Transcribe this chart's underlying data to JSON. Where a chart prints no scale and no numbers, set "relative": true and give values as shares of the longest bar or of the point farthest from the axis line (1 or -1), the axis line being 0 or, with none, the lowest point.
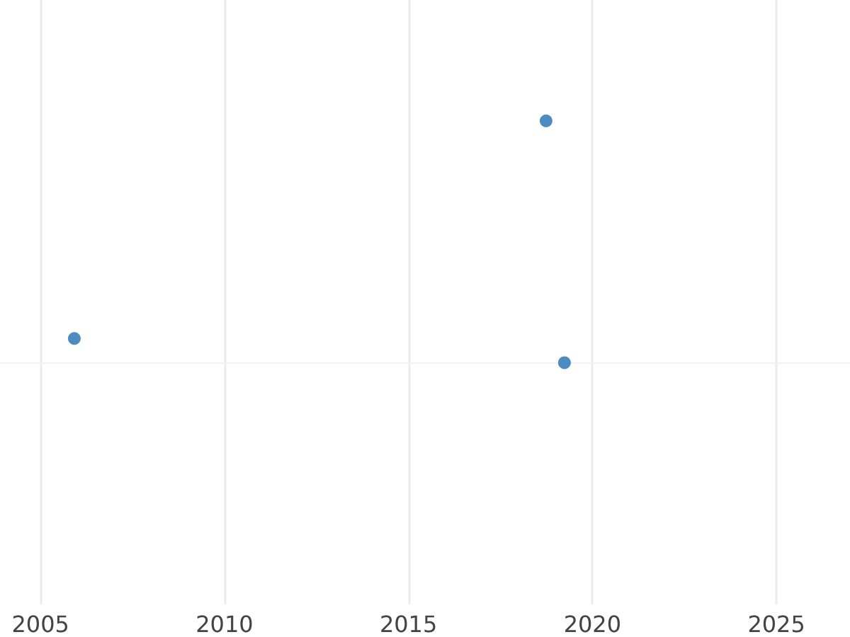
{
  "chart_data": {
    "type": "scatter",
    "relative": true,
    "x": [
      2005.92,
      2018.74,
      2019.24
    ],
    "series": [
      {
        "color": "#1f6fb0",
        "values": [
          0.1,
          1,
          0
        ]
      }
    ],
    "xlim": [
      2003.9,
      2027
    ],
    "xticks": [
      2005,
      2010,
      2015,
      2020,
      2025
    ],
    "grid": "x",
    "marker": "circle",
    "tick_labels": "x"
  }
}
